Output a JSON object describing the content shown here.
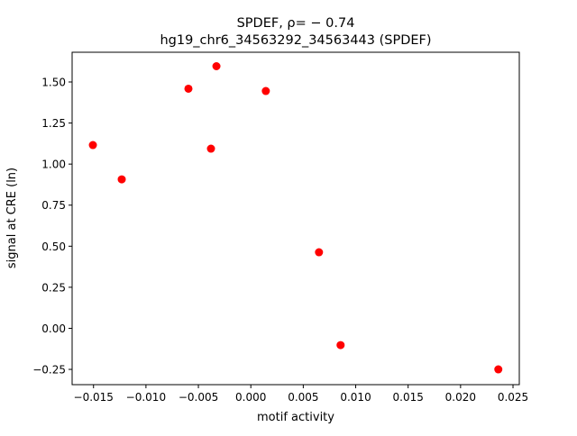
{
  "chart_data": {
    "type": "scatter",
    "title_line1": "SPDEF, ρ= − 0.74",
    "title_line2": "hg19_chr6_34563292_34563443 (SPDEF)",
    "xlabel": "motif activity",
    "ylabel": "signal at CRE (ln)",
    "xlim": [
      -0.01704,
      0.0256
    ],
    "ylim": [
      -0.343,
      1.681
    ],
    "xticks": [
      -0.015,
      -0.01,
      -0.005,
      0.0,
      0.005,
      0.01,
      0.015,
      0.02,
      0.025
    ],
    "xtick_labels": [
      "−0.015",
      "−0.010",
      "−0.005",
      "0.000",
      "0.005",
      "0.010",
      "0.015",
      "0.020",
      "0.025"
    ],
    "yticks": [
      -0.25,
      0.0,
      0.25,
      0.5,
      0.75,
      1.0,
      1.25,
      1.5
    ],
    "ytick_labels": [
      "−0.25",
      "0.00",
      "0.25",
      "0.50",
      "0.75",
      "1.00",
      "1.25",
      "1.50"
    ],
    "grid": false,
    "color": "#ff0000",
    "points": [
      {
        "x": -0.01506,
        "y": 1.116
      },
      {
        "x": -0.01231,
        "y": 0.907
      },
      {
        "x": -0.00595,
        "y": 1.459
      },
      {
        "x": -0.0038,
        "y": 1.094
      },
      {
        "x": -0.00328,
        "y": 1.596
      },
      {
        "x": 0.00143,
        "y": 1.445
      },
      {
        "x": 0.0065,
        "y": 0.463
      },
      {
        "x": 0.00856,
        "y": -0.102
      },
      {
        "x": 0.0236,
        "y": -0.25
      }
    ]
  }
}
